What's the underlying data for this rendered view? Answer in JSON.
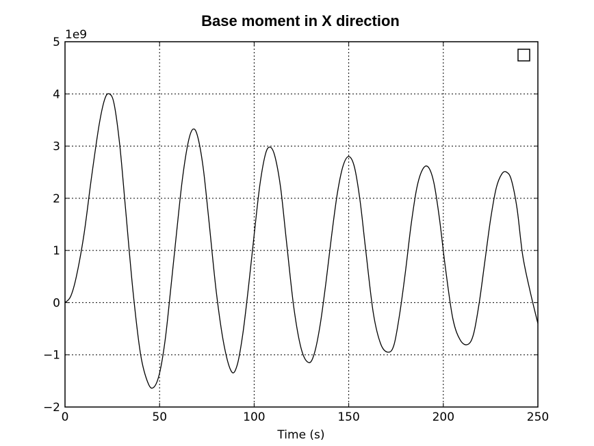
{
  "chart_data": {
    "type": "line",
    "title": "Base moment in X direction",
    "xlabel": "Time (s)",
    "ylabel": "",
    "y_multiplier": "1e9",
    "xlim": [
      0,
      250
    ],
    "ylim": [
      -2,
      5
    ],
    "x_ticks": [
      0,
      50,
      100,
      150,
      200,
      250
    ],
    "y_ticks": [
      -2,
      -1,
      0,
      1,
      2,
      3,
      4,
      5
    ],
    "x_tick_labels": [
      "0",
      "50",
      "100",
      "150",
      "200",
      "250"
    ],
    "y_tick_labels": [
      "−2",
      "−1",
      "0",
      "1",
      "2",
      "3",
      "4",
      "5"
    ],
    "grid": true,
    "legend": "top-right (empty)",
    "line_color": "#000000",
    "series": [
      {
        "x": [
          0,
          3,
          6,
          10,
          14,
          18,
          21,
          23.5,
          26,
          29,
          32,
          36,
          40,
          44,
          47,
          50,
          53,
          56,
          59,
          62,
          65,
          67.5,
          70,
          73,
          76,
          80,
          84,
          88,
          91,
          94,
          97,
          100,
          103,
          106,
          108.5,
          111,
          114,
          117,
          121,
          125,
          129,
          132,
          135,
          138,
          141,
          144,
          147,
          150,
          153,
          156,
          159,
          163,
          167,
          171,
          174,
          177,
          180,
          183,
          186,
          189,
          192,
          195,
          198,
          201,
          205,
          209,
          213,
          216,
          219,
          222,
          225,
          228,
          231,
          233.5,
          236,
          239,
          242,
          246,
          250
        ],
        "y": [
          0,
          0.12,
          0.5,
          1.3,
          2.4,
          3.4,
          3.9,
          4.0,
          3.8,
          3.0,
          1.8,
          0.2,
          -1.0,
          -1.55,
          -1.62,
          -1.35,
          -0.7,
          0.3,
          1.35,
          2.35,
          3.05,
          3.32,
          3.2,
          2.6,
          1.6,
          0.2,
          -0.8,
          -1.32,
          -1.2,
          -0.6,
          0.3,
          1.3,
          2.25,
          2.85,
          2.98,
          2.8,
          2.2,
          1.2,
          -0.1,
          -0.9,
          -1.15,
          -0.95,
          -0.4,
          0.4,
          1.3,
          2.1,
          2.62,
          2.8,
          2.6,
          1.95,
          1.0,
          -0.2,
          -0.8,
          -0.95,
          -0.8,
          -0.2,
          0.6,
          1.5,
          2.2,
          2.55,
          2.6,
          2.3,
          1.6,
          0.7,
          -0.3,
          -0.72,
          -0.8,
          -0.6,
          0.0,
          0.8,
          1.6,
          2.2,
          2.47,
          2.5,
          2.35,
          1.8,
          0.9,
          0.2,
          -0.4
        ]
      }
    ]
  }
}
